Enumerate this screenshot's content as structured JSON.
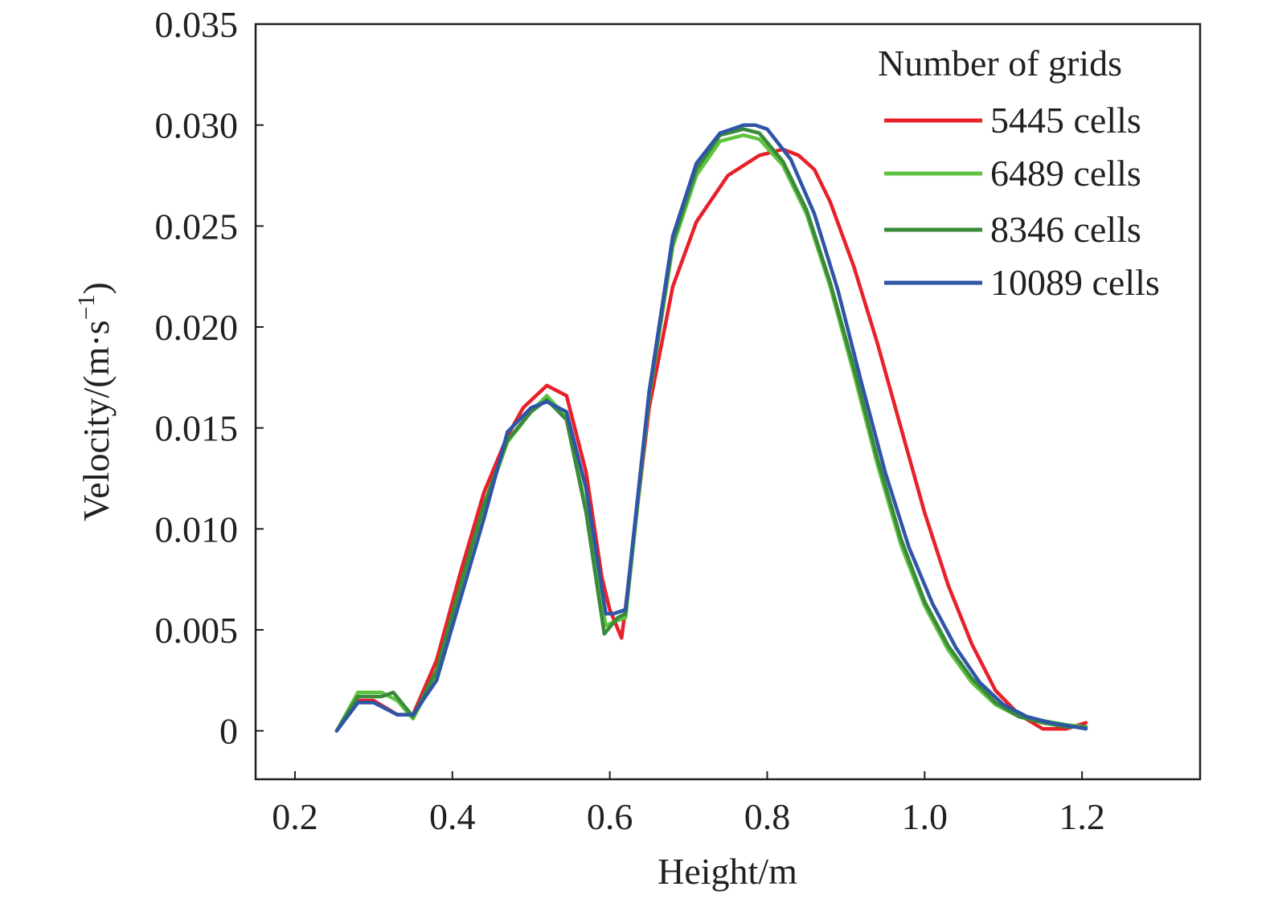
{
  "chart_data": {
    "type": "line",
    "xlabel": "Height/m",
    "ylabel": {
      "prefix": "Velocity/(m·s",
      "sup": "−1",
      "suffix": ")"
    },
    "xlim": [
      0.15,
      1.35
    ],
    "ylim": [
      -0.0024,
      0.035
    ],
    "x_ticks": [
      {
        "value": 0.2,
        "label": "0.2"
      },
      {
        "value": 0.4,
        "label": "0.4"
      },
      {
        "value": 0.6,
        "label": "0.6"
      },
      {
        "value": 0.8,
        "label": "0.8"
      },
      {
        "value": 1.0,
        "label": "1.0"
      },
      {
        "value": 1.2,
        "label": "1.2"
      }
    ],
    "y_ticks": [
      {
        "value": 0,
        "label": "0"
      },
      {
        "value": 0.005,
        "label": "0.005"
      },
      {
        "value": 0.01,
        "label": "0.010"
      },
      {
        "value": 0.015,
        "label": "0.015"
      },
      {
        "value": 0.02,
        "label": "0.020"
      },
      {
        "value": 0.025,
        "label": "0.025"
      },
      {
        "value": 0.03,
        "label": "0.030"
      },
      {
        "value": 0.035,
        "label": "0.035"
      }
    ],
    "grid": false,
    "legend": {
      "title": "Number of grids",
      "position": "top-right"
    },
    "series": [
      {
        "name": "5445 cells",
        "color": "#e8202a",
        "x": [
          0.253,
          0.28,
          0.3,
          0.33,
          0.35,
          0.38,
          0.41,
          0.44,
          0.47,
          0.49,
          0.52,
          0.545,
          0.57,
          0.59,
          0.6,
          0.615,
          0.62,
          0.65,
          0.68,
          0.71,
          0.75,
          0.79,
          0.82,
          0.84,
          0.86,
          0.88,
          0.91,
          0.94,
          0.97,
          1.0,
          1.03,
          1.06,
          1.09,
          1.12,
          1.15,
          1.18,
          1.205
        ],
        "y": [
          0,
          0.0015,
          0.0015,
          0.0008,
          0.0008,
          0.0035,
          0.0078,
          0.0118,
          0.0146,
          0.016,
          0.0171,
          0.0166,
          0.0128,
          0.0076,
          0.006,
          0.0046,
          0.0061,
          0.016,
          0.022,
          0.0252,
          0.0275,
          0.0285,
          0.0288,
          0.0285,
          0.0278,
          0.0262,
          0.023,
          0.0192,
          0.015,
          0.0108,
          0.0072,
          0.0043,
          0.002,
          0.0008,
          0.0001,
          0.0001,
          0.0004
        ]
      },
      {
        "name": "6489 cells",
        "color": "#5ec43f",
        "x": [
          0.253,
          0.28,
          0.31,
          0.33,
          0.35,
          0.38,
          0.41,
          0.44,
          0.47,
          0.5,
          0.52,
          0.545,
          0.57,
          0.595,
          0.605,
          0.62,
          0.65,
          0.68,
          0.71,
          0.74,
          0.77,
          0.79,
          0.82,
          0.85,
          0.88,
          0.91,
          0.94,
          0.97,
          1.0,
          1.03,
          1.06,
          1.09,
          1.12,
          1.15,
          1.18,
          1.205
        ],
        "y": [
          0,
          0.0019,
          0.0019,
          0.0015,
          0.0006,
          0.0028,
          0.007,
          0.011,
          0.0143,
          0.0158,
          0.0166,
          0.0155,
          0.011,
          0.0052,
          0.0054,
          0.0056,
          0.0165,
          0.024,
          0.0275,
          0.0292,
          0.0295,
          0.0293,
          0.028,
          0.0256,
          0.022,
          0.0177,
          0.0132,
          0.0092,
          0.0062,
          0.004,
          0.0024,
          0.0013,
          0.0007,
          0.0005,
          0.0003,
          0.0002
        ]
      },
      {
        "name": "8346 cells",
        "color": "#3a8a3a",
        "x": [
          0.253,
          0.28,
          0.31,
          0.325,
          0.35,
          0.38,
          0.41,
          0.44,
          0.47,
          0.5,
          0.52,
          0.545,
          0.57,
          0.593,
          0.61,
          0.62,
          0.65,
          0.68,
          0.71,
          0.74,
          0.77,
          0.79,
          0.82,
          0.85,
          0.88,
          0.91,
          0.94,
          0.97,
          1.0,
          1.03,
          1.06,
          1.09,
          1.12,
          1.15,
          1.18,
          1.205
        ],
        "y": [
          0,
          0.0017,
          0.0017,
          0.0019,
          0.0007,
          0.003,
          0.0072,
          0.0112,
          0.0144,
          0.0158,
          0.0164,
          0.0154,
          0.0108,
          0.0048,
          0.0056,
          0.0058,
          0.0166,
          0.0242,
          0.0278,
          0.0295,
          0.0298,
          0.0296,
          0.0282,
          0.0258,
          0.0222,
          0.018,
          0.0135,
          0.0095,
          0.0064,
          0.0042,
          0.0026,
          0.0014,
          0.0007,
          0.0004,
          0.0002,
          0.0002
        ]
      },
      {
        "name": "10089 cells",
        "color": "#2e55a6",
        "x": [
          0.253,
          0.28,
          0.3,
          0.33,
          0.35,
          0.38,
          0.41,
          0.44,
          0.47,
          0.5,
          0.52,
          0.545,
          0.57,
          0.595,
          0.605,
          0.62,
          0.65,
          0.68,
          0.71,
          0.74,
          0.77,
          0.785,
          0.8,
          0.83,
          0.86,
          0.89,
          0.92,
          0.95,
          0.98,
          1.01,
          1.04,
          1.07,
          1.1,
          1.13,
          1.16,
          1.19,
          1.205
        ],
        "y": [
          0,
          0.0014,
          0.0014,
          0.0008,
          0.0008,
          0.0025,
          0.0065,
          0.0105,
          0.0148,
          0.016,
          0.0163,
          0.0158,
          0.012,
          0.0058,
          0.0058,
          0.006,
          0.0168,
          0.0245,
          0.0281,
          0.0296,
          0.03,
          0.03,
          0.0298,
          0.0283,
          0.0256,
          0.0218,
          0.0172,
          0.0128,
          0.0091,
          0.0063,
          0.0041,
          0.0024,
          0.0013,
          0.0007,
          0.0004,
          0.0002,
          0.0001
        ]
      }
    ]
  }
}
